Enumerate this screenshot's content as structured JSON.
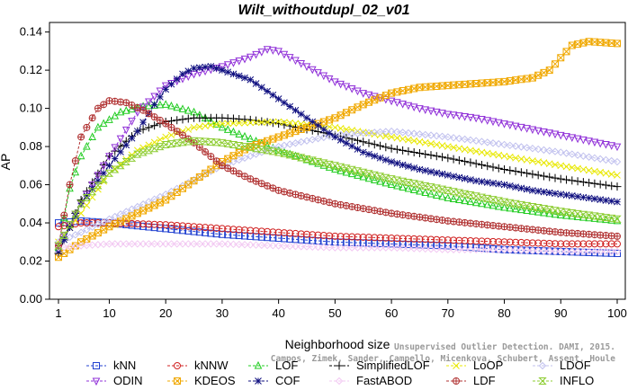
{
  "chart_data": {
    "type": "line",
    "title": "Wilt_withoutdupl_02_v01",
    "xlabel": "Neighborhood size",
    "ylabel": "AP",
    "xlim": [
      1,
      100
    ],
    "ylim": [
      0,
      0.145
    ],
    "x_ticks": [
      "1",
      "10",
      "20",
      "30",
      "40",
      "50",
      "60",
      "70",
      "80",
      "90",
      "100"
    ],
    "y_ticks": [
      "0.00",
      "0.02",
      "0.04",
      "0.06",
      "0.08",
      "0.10",
      "0.12",
      "0.14"
    ],
    "legend_position": "bottom",
    "credit_lines": [
      "Unsupervised Outlier Detection. DAMI, 2015.",
      "Campos, Zimek, Sander, Campello, Micenkova, Schubert, Assent, Houle"
    ],
    "series": [
      {
        "name": "kNN",
        "color": "#2040d0",
        "marker": "square",
        "points": [
          [
            1,
            0.04
          ],
          [
            5,
            0.041
          ],
          [
            10,
            0.04
          ],
          [
            20,
            0.037
          ],
          [
            30,
            0.034
          ],
          [
            40,
            0.032
          ],
          [
            50,
            0.03
          ],
          [
            60,
            0.029
          ],
          [
            70,
            0.028
          ],
          [
            80,
            0.026
          ],
          [
            90,
            0.025
          ],
          [
            100,
            0.024
          ]
        ]
      },
      {
        "name": "kNNW",
        "color": "#d02020",
        "marker": "circle",
        "points": [
          [
            1,
            0.038
          ],
          [
            5,
            0.04
          ],
          [
            10,
            0.04
          ],
          [
            20,
            0.039
          ],
          [
            30,
            0.037
          ],
          [
            40,
            0.035
          ],
          [
            50,
            0.033
          ],
          [
            60,
            0.032
          ],
          [
            70,
            0.031
          ],
          [
            80,
            0.03
          ],
          [
            90,
            0.029
          ],
          [
            100,
            0.029
          ]
        ]
      },
      {
        "name": "LOF",
        "color": "#22cc22",
        "marker": "triangle",
        "points": [
          [
            1,
            0.027
          ],
          [
            3,
            0.058
          ],
          [
            5,
            0.075
          ],
          [
            8,
            0.09
          ],
          [
            12,
            0.098
          ],
          [
            16,
            0.101
          ],
          [
            20,
            0.102
          ],
          [
            25,
            0.098
          ],
          [
            30,
            0.09
          ],
          [
            40,
            0.078
          ],
          [
            50,
            0.068
          ],
          [
            60,
            0.06
          ],
          [
            70,
            0.053
          ],
          [
            80,
            0.048
          ],
          [
            90,
            0.044
          ],
          [
            100,
            0.041
          ]
        ]
      },
      {
        "name": "SimplifiedLOF",
        "color": "#000000",
        "marker": "plus",
        "points": [
          [
            1,
            0.024
          ],
          [
            5,
            0.052
          ],
          [
            10,
            0.075
          ],
          [
            15,
            0.088
          ],
          [
            20,
            0.093
          ],
          [
            25,
            0.095
          ],
          [
            30,
            0.095
          ],
          [
            35,
            0.094
          ],
          [
            40,
            0.092
          ],
          [
            50,
            0.086
          ],
          [
            60,
            0.079
          ],
          [
            70,
            0.074
          ],
          [
            80,
            0.068
          ],
          [
            90,
            0.063
          ],
          [
            100,
            0.059
          ]
        ]
      },
      {
        "name": "LoOP",
        "color": "#e8e800",
        "marker": "cross",
        "points": [
          [
            1,
            0.03
          ],
          [
            5,
            0.045
          ],
          [
            10,
            0.066
          ],
          [
            15,
            0.078
          ],
          [
            20,
            0.085
          ],
          [
            25,
            0.09
          ],
          [
            30,
            0.092
          ],
          [
            40,
            0.093
          ],
          [
            50,
            0.09
          ],
          [
            60,
            0.085
          ],
          [
            70,
            0.08
          ],
          [
            80,
            0.075
          ],
          [
            90,
            0.07
          ],
          [
            100,
            0.065
          ]
        ]
      },
      {
        "name": "LDOF",
        "color": "#c0c0ee",
        "marker": "diamond",
        "points": [
          [
            1,
            0.03
          ],
          [
            5,
            0.035
          ],
          [
            10,
            0.042
          ],
          [
            20,
            0.055
          ],
          [
            30,
            0.07
          ],
          [
            40,
            0.08
          ],
          [
            50,
            0.086
          ],
          [
            60,
            0.088
          ],
          [
            70,
            0.085
          ],
          [
            80,
            0.081
          ],
          [
            90,
            0.077
          ],
          [
            100,
            0.072
          ]
        ]
      },
      {
        "name": "ODIN",
        "color": "#9030d8",
        "marker": "triangle-down",
        "points": [
          [
            1,
            0.028
          ],
          [
            5,
            0.05
          ],
          [
            10,
            0.075
          ],
          [
            15,
            0.098
          ],
          [
            20,
            0.112
          ],
          [
            25,
            0.118
          ],
          [
            30,
            0.122
          ],
          [
            35,
            0.127
          ],
          [
            38,
            0.131
          ],
          [
            40,
            0.13
          ],
          [
            45,
            0.122
          ],
          [
            50,
            0.114
          ],
          [
            55,
            0.108
          ],
          [
            60,
            0.104
          ],
          [
            65,
            0.1
          ],
          [
            70,
            0.097
          ],
          [
            75,
            0.095
          ],
          [
            80,
            0.092
          ],
          [
            85,
            0.089
          ],
          [
            90,
            0.086
          ],
          [
            95,
            0.083
          ],
          [
            100,
            0.08
          ]
        ]
      },
      {
        "name": "KDEOS",
        "color": "#f0a800",
        "marker": "square-x",
        "points": [
          [
            1,
            0.022
          ],
          [
            5,
            0.03
          ],
          [
            10,
            0.038
          ],
          [
            15,
            0.045
          ],
          [
            20,
            0.052
          ],
          [
            25,
            0.062
          ],
          [
            30,
            0.072
          ],
          [
            35,
            0.08
          ],
          [
            40,
            0.085
          ],
          [
            45,
            0.09
          ],
          [
            50,
            0.095
          ],
          [
            55,
            0.102
          ],
          [
            60,
            0.108
          ],
          [
            65,
            0.111
          ],
          [
            70,
            0.112
          ],
          [
            75,
            0.113
          ],
          [
            80,
            0.114
          ],
          [
            85,
            0.116
          ],
          [
            88,
            0.12
          ],
          [
            92,
            0.133
          ],
          [
            95,
            0.135
          ],
          [
            100,
            0.134
          ]
        ]
      },
      {
        "name": "COF",
        "color": "#101080",
        "marker": "star",
        "points": [
          [
            1,
            0.025
          ],
          [
            5,
            0.05
          ],
          [
            10,
            0.07
          ],
          [
            15,
            0.088
          ],
          [
            18,
            0.102
          ],
          [
            20,
            0.11
          ],
          [
            23,
            0.118
          ],
          [
            25,
            0.121
          ],
          [
            28,
            0.122
          ],
          [
            30,
            0.12
          ],
          [
            35,
            0.115
          ],
          [
            40,
            0.105
          ],
          [
            45,
            0.095
          ],
          [
            50,
            0.085
          ],
          [
            55,
            0.077
          ],
          [
            60,
            0.072
          ],
          [
            65,
            0.068
          ],
          [
            70,
            0.065
          ],
          [
            75,
            0.062
          ],
          [
            80,
            0.06
          ],
          [
            85,
            0.057
          ],
          [
            90,
            0.055
          ],
          [
            95,
            0.053
          ],
          [
            100,
            0.051
          ]
        ]
      },
      {
        "name": "FastABOD",
        "color": "#f2c8f2",
        "marker": "diamond",
        "points": [
          [
            1,
            0.027
          ],
          [
            5,
            0.028
          ],
          [
            10,
            0.029
          ],
          [
            20,
            0.029
          ],
          [
            30,
            0.029
          ],
          [
            40,
            0.028
          ],
          [
            50,
            0.027
          ],
          [
            60,
            0.027
          ],
          [
            70,
            0.026
          ],
          [
            80,
            0.026
          ],
          [
            90,
            0.025
          ],
          [
            100,
            0.025
          ]
        ]
      },
      {
        "name": "LDF",
        "color": "#b03030",
        "marker": "circle-dot",
        "points": [
          [
            1,
            0.028
          ],
          [
            3,
            0.06
          ],
          [
            5,
            0.085
          ],
          [
            8,
            0.1
          ],
          [
            10,
            0.104
          ],
          [
            13,
            0.103
          ],
          [
            16,
            0.099
          ],
          [
            20,
            0.092
          ],
          [
            25,
            0.082
          ],
          [
            30,
            0.07
          ],
          [
            35,
            0.063
          ],
          [
            40,
            0.057
          ],
          [
            50,
            0.05
          ],
          [
            60,
            0.045
          ],
          [
            70,
            0.041
          ],
          [
            80,
            0.038
          ],
          [
            90,
            0.035
          ],
          [
            100,
            0.033
          ]
        ]
      },
      {
        "name": "INFLO",
        "color": "#8ccc30",
        "marker": "hourglass",
        "points": [
          [
            1,
            0.028
          ],
          [
            5,
            0.05
          ],
          [
            10,
            0.066
          ],
          [
            15,
            0.076
          ],
          [
            20,
            0.081
          ],
          [
            25,
            0.083
          ],
          [
            30,
            0.082
          ],
          [
            40,
            0.077
          ],
          [
            50,
            0.07
          ],
          [
            60,
            0.063
          ],
          [
            70,
            0.057
          ],
          [
            80,
            0.051
          ],
          [
            90,
            0.046
          ],
          [
            100,
            0.042
          ]
        ]
      }
    ]
  }
}
